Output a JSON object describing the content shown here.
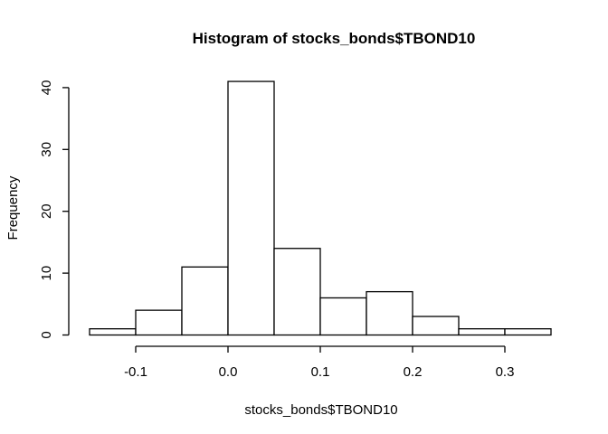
{
  "chart_data": {
    "type": "bar",
    "title": "Histogram of stocks_bonds$TBOND10",
    "xlabel": "stocks_bonds$TBOND10",
    "ylabel": "Frequency",
    "bins": [
      {
        "start": -0.15,
        "end": -0.1,
        "count": 1
      },
      {
        "start": -0.1,
        "end": -0.05,
        "count": 4
      },
      {
        "start": -0.05,
        "end": 0.0,
        "count": 11
      },
      {
        "start": 0.0,
        "end": 0.05,
        "count": 41
      },
      {
        "start": 0.05,
        "end": 0.1,
        "count": 14
      },
      {
        "start": 0.1,
        "end": 0.15,
        "count": 6
      },
      {
        "start": 0.15,
        "end": 0.2,
        "count": 7
      },
      {
        "start": 0.2,
        "end": 0.25,
        "count": 3
      },
      {
        "start": 0.25,
        "end": 0.3,
        "count": 1
      },
      {
        "start": 0.3,
        "end": 0.35,
        "count": 1
      }
    ],
    "xlim": [
      -0.15,
      0.35
    ],
    "ylim": [
      0,
      41
    ],
    "x_ticks": [
      -0.1,
      0.0,
      0.1,
      0.2,
      0.3
    ],
    "x_tick_labels": [
      "-0.1",
      "0.0",
      "0.1",
      "0.2",
      "0.3"
    ],
    "y_ticks": [
      0,
      10,
      20,
      30,
      40
    ],
    "y_tick_labels": [
      "0",
      "10",
      "20",
      "30",
      "40"
    ],
    "grid": false
  }
}
